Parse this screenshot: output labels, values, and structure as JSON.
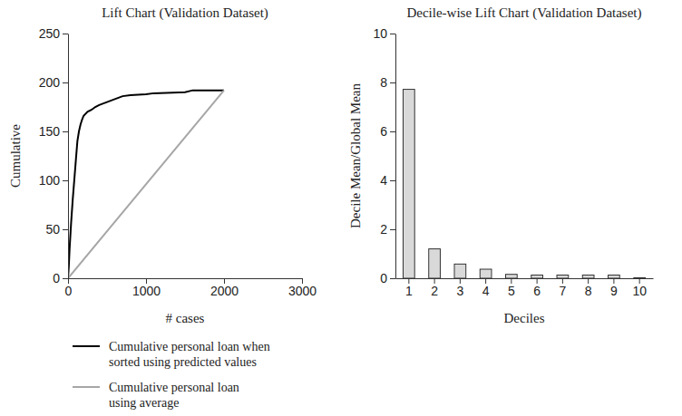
{
  "chart_data": [
    {
      "type": "line",
      "title": "Lift Chart (Validation Dataset)",
      "x_label": "# cases",
      "y_label": "Cumulative",
      "xlim": [
        0,
        3000
      ],
      "xticks": [
        0,
        1000,
        2000,
        3000
      ],
      "ylim": [
        0,
        250
      ],
      "yticks": [
        0,
        50,
        100,
        150,
        200,
        250
      ],
      "grid": false,
      "legend": "bottom-left",
      "series": [
        {
          "name": "Cumulative personal loan when sorted using predicted values",
          "color": "#000000",
          "line_style": "solid",
          "x": [
            0,
            10,
            20,
            40,
            60,
            80,
            100,
            120,
            140,
            160,
            180,
            200,
            250,
            300,
            350,
            400,
            500,
            600,
            700,
            800,
            1000,
            1100,
            1500,
            1600,
            2000
          ],
          "values": [
            0,
            12,
            30,
            57,
            80,
            100,
            120,
            140,
            150,
            157,
            162,
            166,
            170,
            172,
            175,
            177,
            180,
            183,
            186,
            187,
            188,
            189,
            190,
            192,
            192
          ]
        },
        {
          "name": "Cumulative personal loan using average",
          "color": "#a6a6a6",
          "line_style": "solid",
          "x": [
            0,
            2000
          ],
          "values": [
            0,
            192
          ]
        }
      ]
    },
    {
      "type": "bar",
      "title": "Decile-wise Lift Chart (Validation Dataset)",
      "x_label": "Deciles",
      "y_label": "Decile Mean/Global Mean",
      "categories": [
        "1",
        "2",
        "3",
        "4",
        "5",
        "6",
        "7",
        "8",
        "9",
        "10"
      ],
      "values": [
        7.72,
        1.2,
        0.58,
        0.37,
        0.16,
        0.13,
        0.13,
        0.13,
        0.13,
        0.02
      ],
      "color": "#d9d9d9",
      "ylim": [
        0,
        10
      ],
      "yticks": [
        0,
        2,
        4,
        6,
        8,
        10
      ],
      "grid": false
    }
  ]
}
